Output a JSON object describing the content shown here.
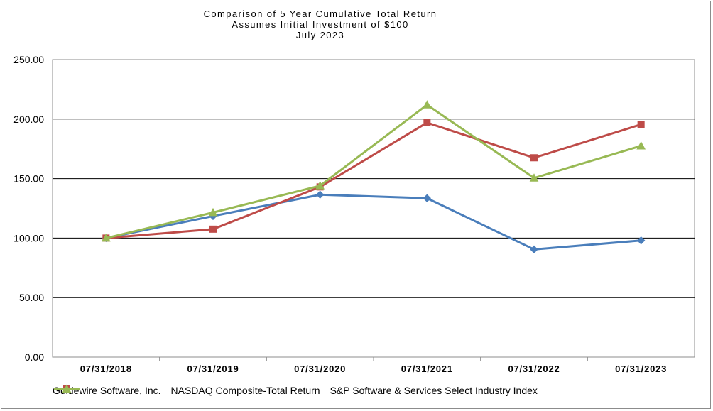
{
  "chart_data": {
    "type": "line",
    "title_lines": [
      "Comparison of 5 Year Cumulative Total Return",
      "Assumes Initial Investment of $100",
      "July 2023"
    ],
    "categories": [
      "07/31/2018",
      "07/31/2019",
      "07/31/2020",
      "07/31/2021",
      "07/31/2022",
      "07/31/2023"
    ],
    "yticks": [
      "0.00",
      "50.00",
      "100.00",
      "150.00",
      "200.00",
      "250.00"
    ],
    "ylim": [
      0,
      250
    ],
    "grid": true,
    "legend_position": "bottom",
    "series": [
      {
        "name": "Guidewire Software, Inc.",
        "color": "#4a7ebb",
        "marker": "diamond",
        "values": [
          100,
          118.5,
          136.5,
          133.5,
          90.5,
          98
        ]
      },
      {
        "name": "NASDAQ Composite-Total Return",
        "color": "#be4b48",
        "marker": "square",
        "values": [
          100,
          107.5,
          143,
          197,
          167.5,
          195.5
        ]
      },
      {
        "name": "S&P Software & Services Select Industry Index",
        "color": "#98b954",
        "marker": "triangle",
        "values": [
          100,
          121.5,
          144,
          212,
          150.5,
          177.5
        ]
      }
    ]
  }
}
